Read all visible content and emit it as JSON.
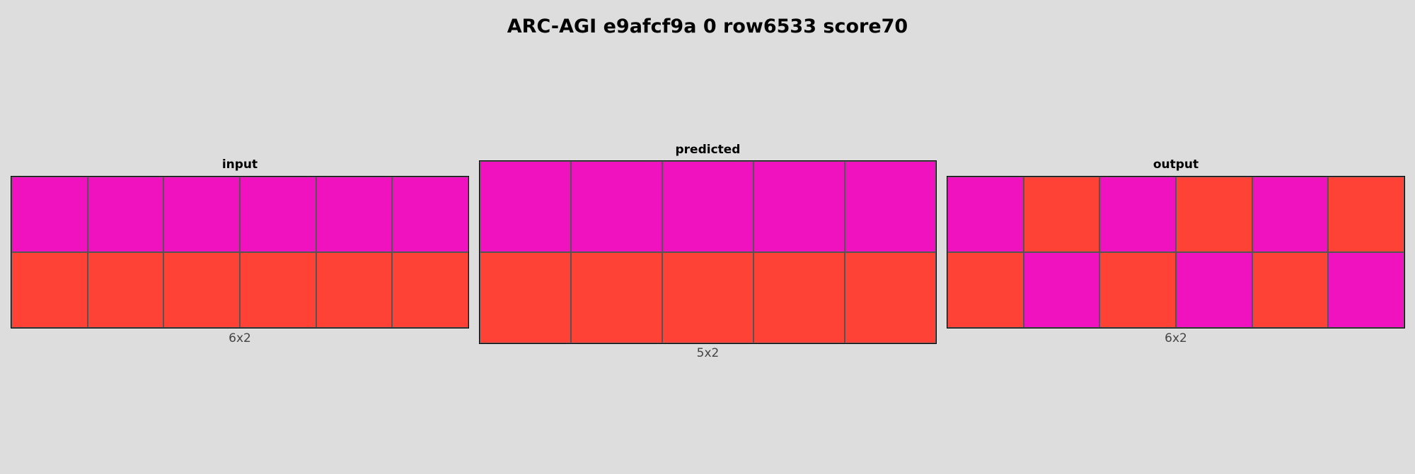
{
  "title": "ARC-AGI e9afcf9a 0 row6533 score70",
  "colors": {
    "M": "#f012be",
    "R": "#ff4136"
  },
  "panels": [
    {
      "label": "input",
      "size": "6x2",
      "rows": [
        [
          "M",
          "M",
          "M",
          "M",
          "M",
          "M"
        ],
        [
          "R",
          "R",
          "R",
          "R",
          "R",
          "R"
        ]
      ]
    },
    {
      "label": "predicted",
      "size": "5x2",
      "rows": [
        [
          "M",
          "M",
          "M",
          "M",
          "M"
        ],
        [
          "R",
          "R",
          "R",
          "R",
          "R"
        ]
      ]
    },
    {
      "label": "output",
      "size": "6x2",
      "rows": [
        [
          "M",
          "R",
          "M",
          "R",
          "M",
          "R"
        ],
        [
          "R",
          "M",
          "R",
          "M",
          "R",
          "M"
        ]
      ]
    }
  ]
}
